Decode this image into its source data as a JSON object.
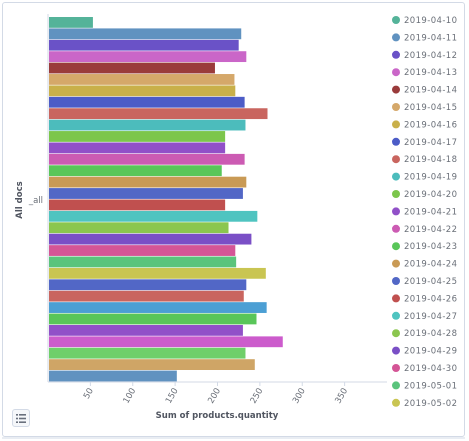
{
  "chart_data": {
    "type": "bar",
    "orientation": "horizontal",
    "xlabel": "Sum of products.quantity",
    "ylabel": "All docs",
    "category": "_all",
    "xlim": [
      0,
      400
    ],
    "x_ticks": [
      "50",
      "100",
      "150",
      "200",
      "250",
      "300",
      "350"
    ],
    "grid": false,
    "legend_position": "right",
    "bars": [
      {
        "series": "2019-04-10",
        "value": 53,
        "color": "#54b399"
      },
      {
        "series": "2019-04-11",
        "value": 228,
        "color": "#6092c0"
      },
      {
        "series": "2019-04-12",
        "value": 225,
        "color": "#6a52c7"
      },
      {
        "series": "2019-04-13",
        "value": 234,
        "color": "#ca66c8"
      },
      {
        "series": "2019-04-14",
        "value": 197,
        "color": "#9a3b3b"
      },
      {
        "series": "2019-04-15",
        "value": 220,
        "color": "#d5a86a"
      },
      {
        "series": "2019-04-16",
        "value": 221,
        "color": "#c9b04a"
      },
      {
        "series": "2019-04-17",
        "value": 232,
        "color": "#4c5cc7"
      },
      {
        "series": "2019-04-18",
        "value": 259,
        "color": "#c9655f"
      },
      {
        "series": "2019-04-19",
        "value": 233,
        "color": "#4cbcbc"
      },
      {
        "series": "2019-04-20",
        "value": 209,
        "color": "#7cc64c"
      },
      {
        "series": "2019-04-21",
        "value": 209,
        "color": "#9150c8"
      },
      {
        "series": "2019-04-22",
        "value": 232,
        "color": "#cc5bb3"
      },
      {
        "series": "2019-04-23",
        "value": 205,
        "color": "#59c659"
      },
      {
        "series": "2019-04-24",
        "value": 234,
        "color": "#c99a55"
      },
      {
        "series": "2019-04-25",
        "value": 230,
        "color": "#5267c6"
      },
      {
        "series": "2019-04-26",
        "value": 209,
        "color": "#c0504f"
      },
      {
        "series": "2019-04-27",
        "value": 247,
        "color": "#4fc4c0"
      },
      {
        "series": "2019-04-28",
        "value": 213,
        "color": "#8bc64f"
      },
      {
        "series": "2019-04-29",
        "value": 240,
        "color": "#7a4fc6"
      },
      {
        "series": "2019-04-30",
        "value": 221,
        "color": "#d45596"
      },
      {
        "series": "2019-05-01",
        "value": 222,
        "color": "#5ac47c"
      },
      {
        "series": "2019-05-02",
        "value": 257,
        "color": "#c9c552"
      },
      {
        "series": "2019-04-25",
        "value": 234,
        "color": "#5267c6"
      },
      {
        "series": "2019-04-26",
        "value": 231,
        "color": "#c9655f"
      },
      {
        "series": "2019-04-27",
        "value": 258,
        "color": "#4c9fd4"
      },
      {
        "series": "2019-04-28",
        "value": 246,
        "color": "#59c659"
      },
      {
        "series": "2019-04-29",
        "value": 230,
        "color": "#9150c8"
      },
      {
        "series": "2019-04-30",
        "value": 277,
        "color": "#cc5bcc"
      },
      {
        "series": "2019-05-01",
        "value": 233,
        "color": "#6fcf6a"
      },
      {
        "series": "2019-05-02",
        "value": 244,
        "color": "#cfa566"
      },
      {
        "series": "2019-04-11",
        "value": 152,
        "color": "#6092c0"
      }
    ],
    "legend": [
      {
        "label": "2019-04-10",
        "color": "#54b399"
      },
      {
        "label": "2019-04-11",
        "color": "#6092c0"
      },
      {
        "label": "2019-04-12",
        "color": "#6a52c7"
      },
      {
        "label": "2019-04-13",
        "color": "#ca66c8"
      },
      {
        "label": "2019-04-14",
        "color": "#9a3b3b"
      },
      {
        "label": "2019-04-15",
        "color": "#d5a86a"
      },
      {
        "label": "2019-04-16",
        "color": "#c9b04a"
      },
      {
        "label": "2019-04-17",
        "color": "#4c5cc7"
      },
      {
        "label": "2019-04-18",
        "color": "#c9655f"
      },
      {
        "label": "2019-04-19",
        "color": "#4cbcbc"
      },
      {
        "label": "2019-04-20",
        "color": "#7cc64c"
      },
      {
        "label": "2019-04-21",
        "color": "#9150c8"
      },
      {
        "label": "2019-04-22",
        "color": "#cc5bb3"
      },
      {
        "label": "2019-04-23",
        "color": "#59c659"
      },
      {
        "label": "2019-04-24",
        "color": "#c99a55"
      },
      {
        "label": "2019-04-25",
        "color": "#5267c6"
      },
      {
        "label": "2019-04-26",
        "color": "#c0504f"
      },
      {
        "label": "2019-04-27",
        "color": "#4fc4c0"
      },
      {
        "label": "2019-04-28",
        "color": "#8bc64f"
      },
      {
        "label": "2019-04-29",
        "color": "#7a4fc6"
      },
      {
        "label": "2019-04-30",
        "color": "#d45596"
      },
      {
        "label": "2019-05-01",
        "color": "#5ac47c"
      },
      {
        "label": "2019-05-02",
        "color": "#c9c552"
      }
    ]
  },
  "controls": {
    "legend_toggle_icon": "list-icon"
  }
}
